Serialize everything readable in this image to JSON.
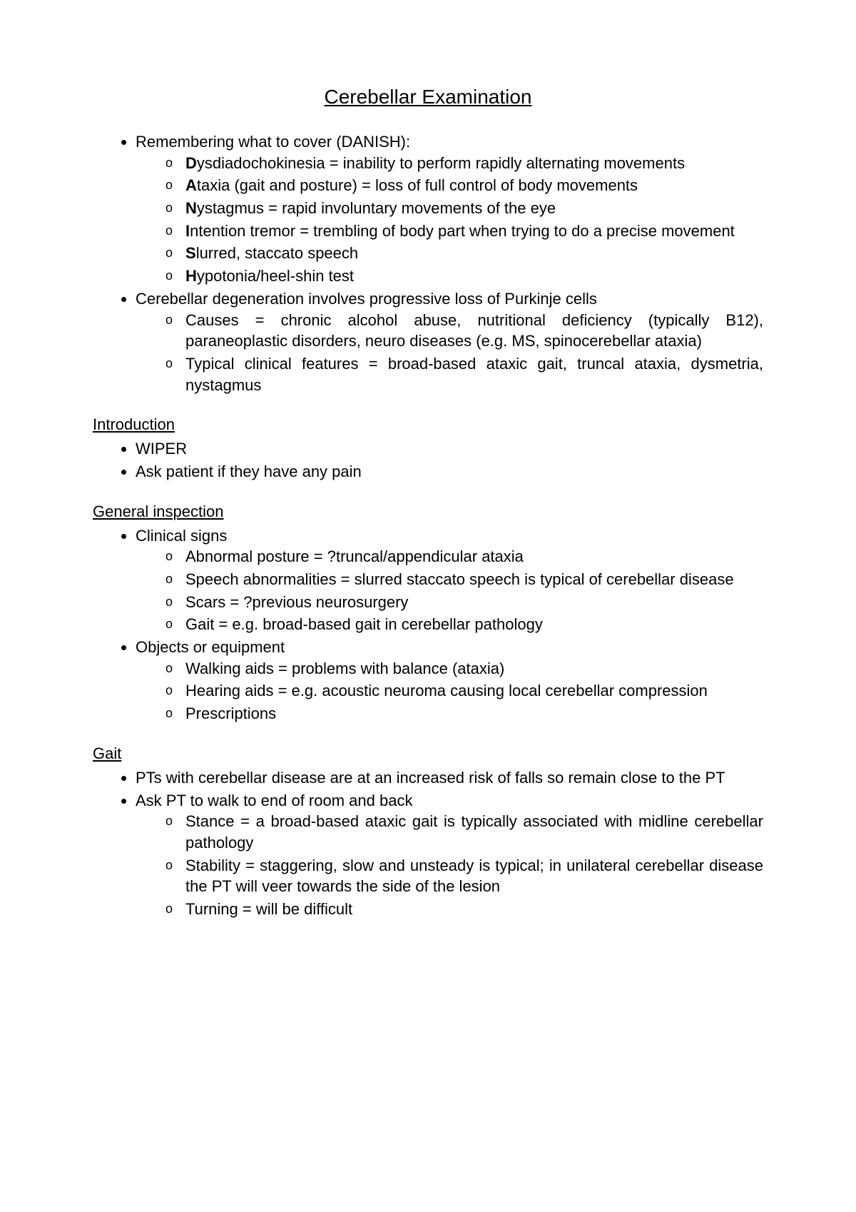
{
  "title": "Cerebellar Examination",
  "overview": {
    "item1": {
      "lead": "Remembering what to cover (DANISH):",
      "sub": {
        "d": {
          "bold": "D",
          "rest": "ysdiadochokinesia = inability to perform rapidly alternating movements"
        },
        "a": {
          "bold": "A",
          "rest": "taxia (gait and posture) = loss of full control of body movements"
        },
        "n": {
          "bold": "N",
          "rest": "ystagmus = rapid involuntary movements of the eye"
        },
        "i": {
          "bold": "I",
          "rest": "ntention tremor = trembling of body part when trying to do a precise movement"
        },
        "s": {
          "bold": "S",
          "rest": "lurred, staccato speech"
        },
        "h": {
          "bold": "H",
          "rest": "ypotonia/heel-shin test"
        }
      }
    },
    "item2": {
      "lead": "Cerebellar degeneration involves progressive loss of Purkinje cells",
      "sub": {
        "causes": "Causes = chronic alcohol abuse, nutritional deficiency (typically B12), paraneoplastic disorders, neuro diseases (e.g. MS, spinocerebellar ataxia)",
        "features": "Typical clinical features = broad-based ataxic gait, truncal ataxia, dysmetria, nystagmus"
      }
    }
  },
  "sections": {
    "intro": {
      "heading": "Introduction",
      "items": {
        "a": "WIPER",
        "b": "Ask patient if they have any pain"
      }
    },
    "general": {
      "heading": "General inspection",
      "items": {
        "clinical": {
          "lead": "Clinical signs",
          "sub": {
            "a": "Abnormal posture = ?truncal/appendicular ataxia",
            "b": "Speech abnormalities = slurred staccato speech is typical of cerebellar disease",
            "c": "Scars = ?previous neurosurgery",
            "d": "Gait = e.g. broad-based gait in cerebellar pathology"
          }
        },
        "objects": {
          "lead": "Objects or equipment",
          "sub": {
            "a": "Walking aids = problems with balance (ataxia)",
            "b": "Hearing aids = e.g. acoustic neuroma causing local cerebellar compression",
            "c": "Prescriptions"
          }
        }
      }
    },
    "gait": {
      "heading": "Gait",
      "items": {
        "a": "PTs with cerebellar disease are at an increased risk of falls so remain close to the PT",
        "b": {
          "lead": "Ask PT to walk to end of room and back",
          "sub": {
            "a": "Stance = a broad-based ataxic gait is typically associated with midline cerebellar pathology",
            "b": "Stability = staggering, slow and unsteady is typical; in unilateral cerebellar disease the PT will veer towards the side of the lesion",
            "c": "Turning = will be difficult"
          }
        }
      }
    }
  }
}
